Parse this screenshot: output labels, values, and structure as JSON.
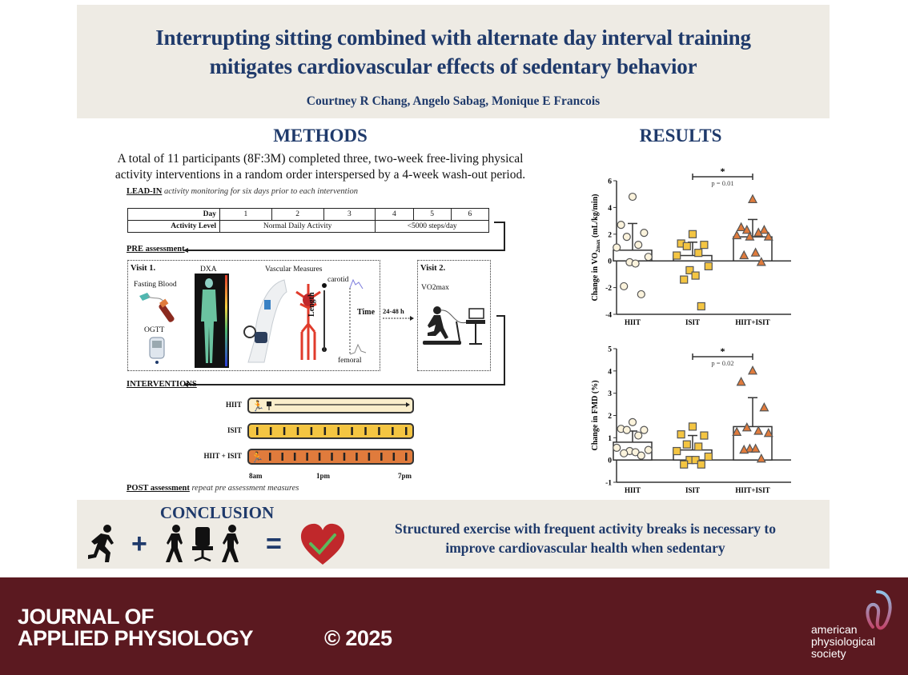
{
  "header": {
    "title_line1": "Interrupting sitting combined with alternate day interval training",
    "title_line2": "mitigates cardiovascular effects of sedentary behavior",
    "authors": "Courtney R Chang, Angelo Sabag, Monique E Francois"
  },
  "methods": {
    "heading": "METHODS",
    "intro_line1": "A total of 11 participants (8F:3M) completed three, two-week free-living physical",
    "intro_line2": "activity interventions in a random order interspersed by a 4-week wash-out period.",
    "leadin_label": "LEAD-IN",
    "leadin_text": "activity monitoring for six days prior to each intervention",
    "table": {
      "day_header": "Day",
      "days": [
        "1",
        "2",
        "3",
        "4",
        "5",
        "6"
      ],
      "activity_header": "Activity Level",
      "activity_a": "Normal Daily Activity",
      "activity_b": "<5000 steps/day"
    },
    "pre_label": "PRE assessment",
    "visit1": {
      "label": "Visit 1.",
      "fasting": "Fasting Blood",
      "ogtt": "OGTT",
      "dxa": "DXA",
      "vascular": "Vascular Measures",
      "carotid": "carotid",
      "femoral": "femoral",
      "length": "Length",
      "time": "Time"
    },
    "gap_label": "24-48 h",
    "visit2": {
      "label": "Visit 2.",
      "test": "VO2max"
    },
    "interventions_label": "INTERVENTIONS",
    "interventions": [
      {
        "name": "HIIT",
        "color": "#fbeecb"
      },
      {
        "name": "ISIT",
        "color": "#f4c542"
      },
      {
        "name": "HIIT + ISIT",
        "color": "#e07b3c"
      }
    ],
    "time_labels": [
      "8am",
      "1pm",
      "7pm"
    ],
    "post_label": "POST assessment",
    "post_text": "repeat pre assessment measures"
  },
  "results": {
    "heading": "RESULTS"
  },
  "chart_data": [
    {
      "type": "bar",
      "title": "",
      "ylabel": "Change in VO2max (mL/kg/min)",
      "ylabel_main": "Change in VO",
      "ylabel_sub": "2max",
      "ylabel_unit": " (mL/kg/min)",
      "ylim": [
        -4,
        6
      ],
      "yticks": [
        "6",
        "4",
        "2",
        "0",
        "-2",
        "-4"
      ],
      "categories": [
        "HIIT",
        "ISIT",
        "HIIT+ISIT"
      ],
      "means": [
        0.8,
        0.4,
        1.8
      ],
      "error_upper": [
        2.8,
        1.4,
        3.1
      ],
      "points": [
        [
          4.8,
          2.7,
          2.1,
          1.8,
          1.2,
          1.0,
          0.3,
          -0.1,
          -0.2,
          -1.9,
          -2.5
        ],
        [
          2.0,
          1.3,
          1.2,
          1.1,
          0.6,
          0.4,
          -0.4,
          -0.7,
          -1.1,
          -1.4,
          -3.4
        ],
        [
          4.6,
          2.5,
          2.3,
          2.3,
          2.1,
          1.9,
          1.8,
          1.8,
          0.6,
          0.4,
          -0.1
        ]
      ],
      "markers": [
        "circle",
        "square",
        "triangle"
      ],
      "colors": [
        "#fbf3dc",
        "#f4c542",
        "#e07b3c"
      ],
      "significance": {
        "star": "*",
        "p": "p = 0.01",
        "between": [
          "ISIT",
          "HIIT+ISIT"
        ]
      }
    },
    {
      "type": "bar",
      "title": "",
      "ylabel": "Change in FMD (%)",
      "ylim": [
        -1,
        5
      ],
      "yticks": [
        "5",
        "4",
        "3",
        "2",
        "1",
        "0",
        "-1"
      ],
      "categories": [
        "HIIT",
        "ISIT",
        "HIIT+ISIT"
      ],
      "means": [
        0.8,
        0.45,
        1.5
      ],
      "error_upper": [
        1.3,
        1.1,
        2.8
      ],
      "points": [
        [
          1.7,
          1.4,
          1.35,
          1.35,
          1.1,
          0.55,
          0.45,
          0.4,
          0.35,
          0.3,
          0.2
        ],
        [
          1.5,
          1.15,
          1.1,
          0.7,
          0.6,
          0.4,
          0.15,
          0.0,
          0.0,
          -0.2,
          -0.2
        ],
        [
          4.0,
          3.5,
          2.35,
          1.45,
          1.3,
          1.25,
          1.2,
          0.5,
          0.5,
          0.45,
          0.05
        ]
      ],
      "markers": [
        "circle",
        "square",
        "triangle"
      ],
      "colors": [
        "#fbf3dc",
        "#f4c542",
        "#e07b3c"
      ],
      "significance": {
        "star": "*",
        "p": "p = 0.02",
        "between": [
          "ISIT",
          "HIIT+ISIT"
        ]
      }
    }
  ],
  "conclusion": {
    "heading": "CONCLUSION",
    "plus": "+",
    "equals": "=",
    "text_line1": "Structured exercise with frequent activity breaks is necessary to",
    "text_line2": "improve cardiovascular health when sedentary",
    "heart_color": "#c0282b",
    "check_color": "#5cb85c"
  },
  "footer": {
    "journal_line1": "JOURNAL OF",
    "journal_line2": "APPLIED PHYSIOLOGY",
    "copyright": "© 2025",
    "society_line1": "american",
    "society_line2": "physiological",
    "society_line3": "society",
    "background": "#5b1920"
  }
}
